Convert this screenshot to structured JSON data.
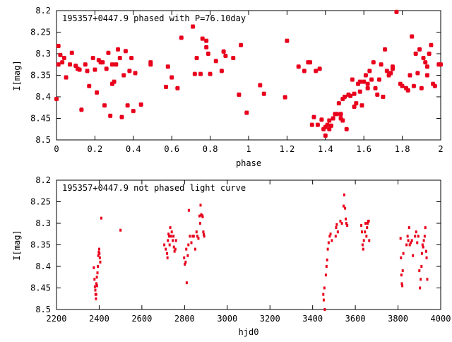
{
  "chart_data": [
    {
      "type": "scatter",
      "title": "195357+0447.9 phased with P=76.10day",
      "xlabel": "phase",
      "ylabel": "I[mag]",
      "xlim": [
        0,
        2
      ],
      "ylim": [
        8.5,
        8.2
      ],
      "y_inverted": true,
      "x_ticks": [
        0,
        0.2,
        0.4,
        0.6,
        0.8,
        1,
        1.2,
        1.4,
        1.6,
        1.8,
        2
      ],
      "x_tick_labels": [
        "0",
        "0.2",
        "0.4",
        "0.6",
        "0.8",
        "1",
        "1.2",
        "1.4",
        "1.6",
        "1.8",
        "2"
      ],
      "y_ticks": [
        8.2,
        8.25,
        8.3,
        8.35,
        8.4,
        8.45,
        8.5
      ],
      "y_tick_labels": [
        "8.2",
        "8.25",
        "8.3",
        "8.35",
        "8.4",
        "8.45",
        "8.5"
      ],
      "grid": false,
      "legend": "none",
      "marker_color": "#e8001c",
      "points": [
        [
          0.0,
          8.405
        ],
        [
          0.01,
          8.282
        ],
        [
          0.01,
          8.325
        ],
        [
          0.02,
          8.303
        ],
        [
          0.03,
          8.32
        ],
        [
          0.04,
          8.31
        ],
        [
          0.05,
          8.355
        ],
        [
          0.07,
          8.325
        ],
        [
          0.08,
          8.298
        ],
        [
          0.1,
          8.328
        ],
        [
          0.11,
          8.335
        ],
        [
          0.12,
          8.337
        ],
        [
          0.13,
          8.43
        ],
        [
          0.15,
          8.325
        ],
        [
          0.16,
          8.34
        ],
        [
          0.17,
          8.375
        ],
        [
          0.19,
          8.31
        ],
        [
          0.2,
          8.337
        ],
        [
          0.21,
          8.39
        ],
        [
          0.22,
          8.315
        ],
        [
          0.23,
          8.32
        ],
        [
          0.24,
          8.32
        ],
        [
          0.25,
          8.42
        ],
        [
          0.26,
          8.335
        ],
        [
          0.27,
          8.298
        ],
        [
          0.28,
          8.444
        ],
        [
          0.29,
          8.37
        ],
        [
          0.29,
          8.325
        ],
        [
          0.3,
          8.365
        ],
        [
          0.31,
          8.325
        ],
        [
          0.32,
          8.29
        ],
        [
          0.33,
          8.31
        ],
        [
          0.34,
          8.447
        ],
        [
          0.35,
          8.35
        ],
        [
          0.36,
          8.294
        ],
        [
          0.37,
          8.42
        ],
        [
          0.38,
          8.34
        ],
        [
          0.39,
          8.31
        ],
        [
          0.4,
          8.433
        ],
        [
          0.41,
          8.345
        ],
        [
          0.44,
          8.418
        ],
        [
          0.49,
          8.32
        ],
        [
          0.49,
          8.325
        ],
        [
          0.57,
          8.377
        ],
        [
          0.58,
          8.33
        ],
        [
          0.6,
          8.355
        ],
        [
          0.63,
          8.38
        ],
        [
          0.65,
          8.263
        ],
        [
          0.71,
          8.237
        ],
        [
          0.72,
          8.347
        ],
        [
          0.73,
          8.31
        ],
        [
          0.75,
          8.347
        ],
        [
          0.76,
          8.265
        ],
        [
          0.78,
          8.27
        ],
        [
          0.78,
          8.285
        ],
        [
          0.79,
          8.3
        ],
        [
          0.8,
          8.347
        ],
        [
          0.83,
          8.317
        ],
        [
          0.86,
          8.34
        ],
        [
          0.87,
          8.295
        ],
        [
          0.88,
          8.305
        ],
        [
          0.92,
          8.31
        ],
        [
          0.95,
          8.395
        ],
        [
          0.96,
          8.28
        ],
        [
          0.99,
          8.437
        ],
        [
          1.06,
          8.373
        ],
        [
          1.08,
          8.393
        ],
        [
          1.19,
          8.401
        ],
        [
          1.2,
          8.27
        ],
        [
          1.26,
          8.33
        ],
        [
          1.29,
          8.34
        ],
        [
          1.31,
          8.32
        ],
        [
          1.32,
          8.32
        ],
        [
          1.33,
          8.465
        ],
        [
          1.34,
          8.447
        ],
        [
          1.35,
          8.34
        ],
        [
          1.36,
          8.465
        ],
        [
          1.37,
          8.335
        ],
        [
          1.38,
          8.453
        ],
        [
          1.39,
          8.475
        ],
        [
          1.4,
          8.47
        ],
        [
          1.4,
          8.49
        ],
        [
          1.41,
          8.465
        ],
        [
          1.42,
          8.475
        ],
        [
          1.42,
          8.455
        ],
        [
          1.43,
          8.467
        ],
        [
          1.44,
          8.45
        ],
        [
          1.45,
          8.44
        ],
        [
          1.46,
          8.44
        ],
        [
          1.47,
          8.415
        ],
        [
          1.48,
          8.45
        ],
        [
          1.48,
          8.44
        ],
        [
          1.49,
          8.455
        ],
        [
          1.49,
          8.405
        ],
        [
          1.5,
          8.4
        ],
        [
          1.51,
          8.475
        ],
        [
          1.52,
          8.395
        ],
        [
          1.53,
          8.398
        ],
        [
          1.54,
          8.36
        ],
        [
          1.55,
          8.393
        ],
        [
          1.55,
          8.423
        ],
        [
          1.56,
          8.415
        ],
        [
          1.57,
          8.37
        ],
        [
          1.58,
          8.365
        ],
        [
          1.58,
          8.388
        ],
        [
          1.59,
          8.42
        ],
        [
          1.6,
          8.365
        ],
        [
          1.61,
          8.35
        ],
        [
          1.62,
          8.37
        ],
        [
          1.62,
          8.38
        ],
        [
          1.63,
          8.34
        ],
        [
          1.64,
          8.36
        ],
        [
          1.65,
          8.32
        ],
        [
          1.66,
          8.38
        ],
        [
          1.67,
          8.395
        ],
        [
          1.68,
          8.36
        ],
        [
          1.69,
          8.325
        ],
        [
          1.7,
          8.4
        ],
        [
          1.71,
          8.29
        ],
        [
          1.72,
          8.34
        ],
        [
          1.73,
          8.35
        ],
        [
          1.74,
          8.345
        ],
        [
          1.75,
          8.33
        ],
        [
          1.75,
          8.335
        ],
        [
          1.77,
          8.203
        ],
        [
          1.79,
          8.37
        ],
        [
          1.8,
          8.375
        ],
        [
          1.82,
          8.38
        ],
        [
          1.83,
          8.385
        ],
        [
          1.84,
          8.35
        ],
        [
          1.85,
          8.26
        ],
        [
          1.86,
          8.375
        ],
        [
          1.87,
          8.3
        ],
        [
          1.88,
          8.345
        ],
        [
          1.89,
          8.29
        ],
        [
          1.9,
          8.38
        ],
        [
          1.91,
          8.31
        ],
        [
          1.92,
          8.32
        ],
        [
          1.93,
          8.33
        ],
        [
          1.93,
          8.35
        ],
        [
          1.94,
          8.3
        ],
        [
          1.95,
          8.28
        ],
        [
          1.96,
          8.37
        ],
        [
          1.97,
          8.375
        ],
        [
          1.99,
          8.325
        ],
        [
          2.0,
          8.325
        ]
      ]
    },
    {
      "type": "scatter",
      "title": "195357+0447.9 not phased light curve",
      "xlabel": "hjd0",
      "ylabel": "I[mag]",
      "xlim": [
        2200,
        4000
      ],
      "ylim": [
        8.5,
        8.2
      ],
      "y_inverted": true,
      "x_ticks": [
        2200,
        2400,
        2600,
        2800,
        3000,
        3200,
        3400,
        3600,
        3800,
        4000
      ],
      "x_tick_labels": [
        "2200",
        "2400",
        "2600",
        "2800",
        "3000",
        "3200",
        "3400",
        "3600",
        "3800",
        "4000"
      ],
      "y_ticks": [
        8.2,
        8.25,
        8.3,
        8.35,
        8.4,
        8.45,
        8.5
      ],
      "y_tick_labels": [
        "8.2",
        "8.25",
        "8.3",
        "8.35",
        "8.4",
        "8.45",
        "8.5"
      ],
      "grid": false,
      "legend": "none",
      "marker_color": "#e8001c",
      "points": [
        [
          2375,
          8.403
        ],
        [
          2378,
          8.43
        ],
        [
          2380,
          8.447
        ],
        [
          2382,
          8.455
        ],
        [
          2383,
          8.465
        ],
        [
          2385,
          8.475
        ],
        [
          2386,
          8.465
        ],
        [
          2387,
          8.44
        ],
        [
          2389,
          8.425
        ],
        [
          2390,
          8.445
        ],
        [
          2392,
          8.415
        ],
        [
          2394,
          8.4
        ],
        [
          2396,
          8.375
        ],
        [
          2398,
          8.367
        ],
        [
          2400,
          8.36
        ],
        [
          2401,
          8.37
        ],
        [
          2403,
          8.38
        ],
        [
          2405,
          8.39
        ],
        [
          2410,
          8.288
        ],
        [
          2500,
          8.316
        ],
        [
          2705,
          8.35
        ],
        [
          2712,
          8.36
        ],
        [
          2718,
          8.37
        ],
        [
          2720,
          8.38
        ],
        [
          2722,
          8.34
        ],
        [
          2725,
          8.325
        ],
        [
          2728,
          8.33
        ],
        [
          2730,
          8.35
        ],
        [
          2733,
          8.31
        ],
        [
          2737,
          8.33
        ],
        [
          2740,
          8.32
        ],
        [
          2745,
          8.34
        ],
        [
          2748,
          8.33
        ],
        [
          2750,
          8.355
        ],
        [
          2753,
          8.365
        ],
        [
          2757,
          8.36
        ],
        [
          2760,
          8.34
        ],
        [
          2798,
          8.38
        ],
        [
          2801,
          8.395
        ],
        [
          2805,
          8.39
        ],
        [
          2808,
          8.36
        ],
        [
          2810,
          8.438
        ],
        [
          2815,
          8.375
        ],
        [
          2818,
          8.35
        ],
        [
          2820,
          8.27
        ],
        [
          2825,
          8.33
        ],
        [
          2832,
          8.345
        ],
        [
          2838,
          8.33
        ],
        [
          2843,
          8.33
        ],
        [
          2850,
          8.36
        ],
        [
          2856,
          8.32
        ],
        [
          2860,
          8.33
        ],
        [
          2865,
          8.335
        ],
        [
          2870,
          8.283
        ],
        [
          2873,
          8.3
        ],
        [
          2875,
          8.258
        ],
        [
          2878,
          8.28
        ],
        [
          2882,
          8.282
        ],
        [
          2885,
          8.285
        ],
        [
          2888,
          8.32
        ],
        [
          2890,
          8.326
        ],
        [
          2892,
          8.33
        ],
        [
          3450,
          8.465
        ],
        [
          3452,
          8.478
        ],
        [
          3455,
          8.45
        ],
        [
          3457,
          8.5
        ],
        [
          3462,
          8.42
        ],
        [
          3465,
          8.4
        ],
        [
          3468,
          8.385
        ],
        [
          3471,
          8.36
        ],
        [
          3475,
          8.345
        ],
        [
          3480,
          8.33
        ],
        [
          3484,
          8.325
        ],
        [
          3490,
          8.34
        ],
        [
          3508,
          8.33
        ],
        [
          3510,
          8.31
        ],
        [
          3513,
          8.303
        ],
        [
          3518,
          8.32
        ],
        [
          3530,
          8.295
        ],
        [
          3537,
          8.3
        ],
        [
          3545,
          8.26
        ],
        [
          3548,
          8.234
        ],
        [
          3552,
          8.265
        ],
        [
          3555,
          8.29
        ],
        [
          3558,
          8.3
        ],
        [
          3562,
          8.305
        ],
        [
          3628,
          8.305
        ],
        [
          3631,
          8.32
        ],
        [
          3634,
          8.35
        ],
        [
          3637,
          8.36
        ],
        [
          3640,
          8.34
        ],
        [
          3645,
          8.32
        ],
        [
          3648,
          8.3
        ],
        [
          3652,
          8.33
        ],
        [
          3655,
          8.31
        ],
        [
          3658,
          8.3
        ],
        [
          3660,
          8.295
        ],
        [
          3663,
          8.295
        ],
        [
          3665,
          8.34
        ],
        [
          3812,
          8.335
        ],
        [
          3814,
          8.38
        ],
        [
          3816,
          8.42
        ],
        [
          3818,
          8.44
        ],
        [
          3820,
          8.445
        ],
        [
          3822,
          8.41
        ],
        [
          3825,
          8.37
        ],
        [
          3840,
          8.35
        ],
        [
          3845,
          8.33
        ],
        [
          3848,
          8.34
        ],
        [
          3852,
          8.31
        ],
        [
          3855,
          8.35
        ],
        [
          3860,
          8.345
        ],
        [
          3865,
          8.34
        ],
        [
          3870,
          8.375
        ],
        [
          3880,
          8.33
        ],
        [
          3885,
          8.32
        ],
        [
          3890,
          8.345
        ],
        [
          3895,
          8.33
        ],
        [
          3900,
          8.41
        ],
        [
          3903,
          8.45
        ],
        [
          3906,
          8.43
        ],
        [
          3910,
          8.4
        ],
        [
          3912,
          8.37
        ],
        [
          3915,
          8.35
        ],
        [
          3918,
          8.355
        ],
        [
          3921,
          8.34
        ],
        [
          3925,
          8.33
        ],
        [
          3928,
          8.31
        ],
        [
          3932,
          8.365
        ],
        [
          3934,
          8.38
        ],
        [
          3937,
          8.43
        ]
      ]
    }
  ]
}
